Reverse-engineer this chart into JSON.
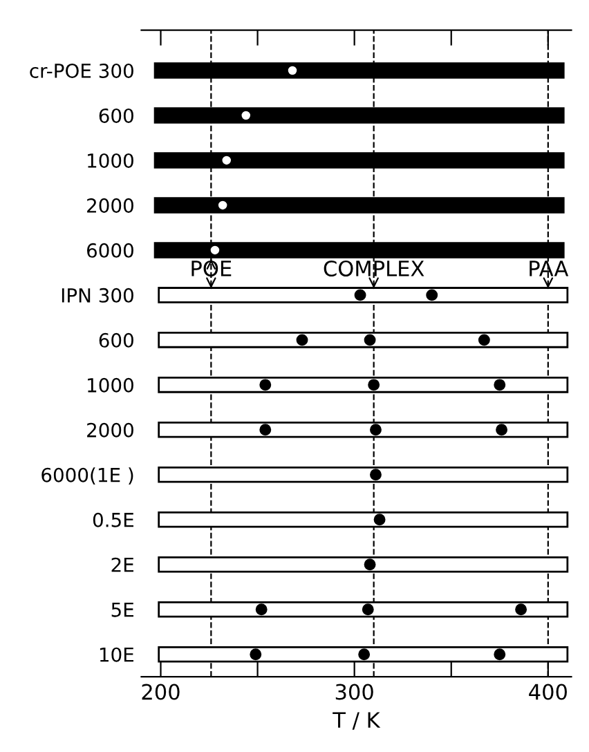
{
  "chart_data": {
    "type": "bar",
    "orientation": "horizontal",
    "xlabel": "T / K",
    "categories": [
      "cr-POE 300",
      "600",
      "1000",
      "2000",
      "6000",
      "IPN 300",
      "600",
      "1000",
      "2000",
      "6000(1E )",
      "0.5E",
      "2E",
      "5E",
      "10E"
    ],
    "series": [
      {
        "base": [
          197,
          197,
          197,
          197,
          197,
          199,
          199,
          199,
          199,
          199,
          199,
          199,
          199,
          199
        ],
        "values": [
          211,
          211,
          211,
          211,
          211,
          211,
          211,
          211,
          211,
          211,
          211,
          211,
          211,
          211
        ],
        "colors": [
          "#000000",
          "#000000",
          "#000000",
          "#000000",
          "#000000",
          "#ffffff",
          "#ffffff",
          "#ffffff",
          "#ffffff",
          "#ffffff",
          "#ffffff",
          "#ffffff",
          "#ffffff",
          "#ffffff"
        ]
      },
      {
        "type": "scatter",
        "color": "#ffffff",
        "values": [
          268,
          244,
          234,
          232,
          228,
          null,
          null,
          null,
          null,
          null,
          null,
          null,
          null,
          null
        ]
      },
      {
        "type": "scatter",
        "color": "#000000",
        "values": [
          null,
          null,
          null,
          null,
          null,
          null,
          273,
          254,
          254,
          null,
          null,
          null,
          252,
          249
        ]
      },
      {
        "type": "scatter",
        "color": "#000000",
        "values": [
          null,
          null,
          null,
          null,
          null,
          303,
          308,
          310,
          311,
          311,
          313,
          308,
          307,
          305
        ]
      },
      {
        "type": "scatter",
        "color": "#000000",
        "values": [
          null,
          null,
          null,
          null,
          null,
          340,
          367,
          375,
          376,
          null,
          null,
          null,
          386,
          375
        ]
      }
    ],
    "marker": "circle",
    "xlim": [
      190,
      412
    ],
    "xticks": [
      200,
      {
        "value": 250,
        "label": null
      },
      300,
      {
        "value": 350,
        "label": null
      },
      400
    ],
    "ref_lines": [
      {
        "axis": "x",
        "value": 226,
        "line_style": "dashed"
      },
      {
        "axis": "x",
        "value": 310,
        "line_style": "dashed"
      },
      {
        "axis": "x",
        "value": 400,
        "line_style": "dashed"
      }
    ],
    "annotations": [
      {
        "text": "POE",
        "x": 226
      },
      {
        "text": "COMPLEX",
        "x": 310
      },
      {
        "text": "PAA",
        "x": 400
      }
    ],
    "grid": false,
    "legend": false
  }
}
